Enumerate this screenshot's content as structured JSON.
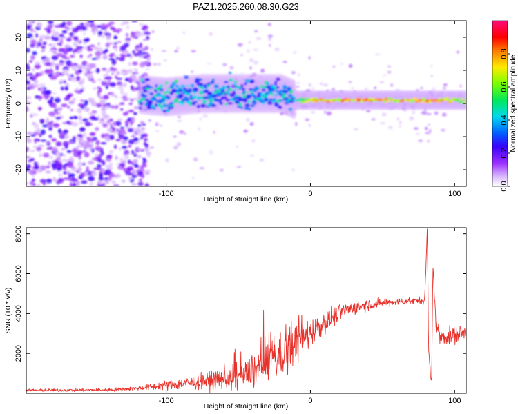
{
  "title": "PAZ1.2025.260.08.30.G23",
  "chart_data": [
    {
      "type": "heatmap",
      "xlabel": "Height of straight line (km)",
      "ylabel": "Frequency (Hz)",
      "xlim": [
        -197,
        108
      ],
      "ylim": [
        -25,
        25
      ],
      "xticks": [
        -100,
        0,
        100
      ],
      "yticks": [
        -20,
        -10,
        0,
        10,
        20
      ],
      "colorbar": {
        "label": "Normalized spectral amplitude",
        "range": [
          0,
          1
        ],
        "ticks": [
          "0.0",
          "0.2",
          "0.4",
          "0.6",
          "0.8"
        ],
        "colormap": "white-purple-blue-cyan-green-yellow-red-magenta"
      },
      "signal_band": {
        "centre_frequency_hz": [
          [
            -125,
            3
          ],
          [
            -100,
            2
          ],
          [
            -75,
            3
          ],
          [
            -50,
            3
          ],
          [
            -20,
            3
          ],
          [
            -10,
            1
          ],
          [
            0,
            1
          ],
          [
            20,
            1
          ],
          [
            60,
            1
          ],
          [
            80,
            1
          ],
          [
            108,
            1
          ]
        ],
        "peak_amplitude": [
          [
            -125,
            0.4
          ],
          [
            -100,
            0.45
          ],
          [
            -60,
            0.4
          ],
          [
            -20,
            0.4
          ],
          [
            -10,
            0.5
          ],
          [
            0,
            0.8
          ],
          [
            20,
            0.9
          ],
          [
            60,
            0.85
          ],
          [
            80,
            0.9
          ],
          [
            108,
            0.7
          ]
        ]
      },
      "noise_region_x": [
        -197,
        -118
      ]
    },
    {
      "type": "line",
      "xlabel": "Height of straight line (km)",
      "ylabel": "SNR (10 * v/v)",
      "xlim": [
        -197,
        108
      ],
      "ylim": [
        0,
        8300
      ],
      "xticks": [
        -100,
        0,
        100
      ],
      "yticks": [
        2000,
        4000,
        6000,
        8000
      ],
      "series": [
        {
          "color": "#e8322b",
          "mean_points": [
            [
              -197,
              150
            ],
            [
              -140,
              170
            ],
            [
              -120,
              250
            ],
            [
              -100,
              400
            ],
            [
              -80,
              550
            ],
            [
              -60,
              700
            ],
            [
              -45,
              900
            ],
            [
              -35,
              1300
            ],
            [
              -25,
              1700
            ],
            [
              -15,
              2100
            ],
            [
              -5,
              2800
            ],
            [
              5,
              3300
            ],
            [
              15,
              3800
            ],
            [
              25,
              4200
            ],
            [
              40,
              4450
            ],
            [
              60,
              4600
            ],
            [
              79,
              4650
            ],
            [
              80,
              6000
            ],
            [
              81,
              8300
            ],
            [
              82,
              2000
            ],
            [
              84,
              400
            ],
            [
              85,
              6500
            ],
            [
              87,
              3500
            ],
            [
              90,
              2800
            ],
            [
              100,
              2900
            ],
            [
              108,
              3100
            ]
          ],
          "noise_amplitude": [
            [
              -197,
              60
            ],
            [
              -120,
              80
            ],
            [
              -100,
              200
            ],
            [
              -60,
              400
            ],
            [
              -40,
              700
            ],
            [
              -25,
              900
            ],
            [
              -10,
              800
            ],
            [
              5,
              500
            ],
            [
              25,
              300
            ],
            [
              60,
              150
            ],
            [
              79,
              150
            ],
            [
              90,
              400
            ],
            [
              108,
              300
            ]
          ]
        }
      ]
    }
  ]
}
